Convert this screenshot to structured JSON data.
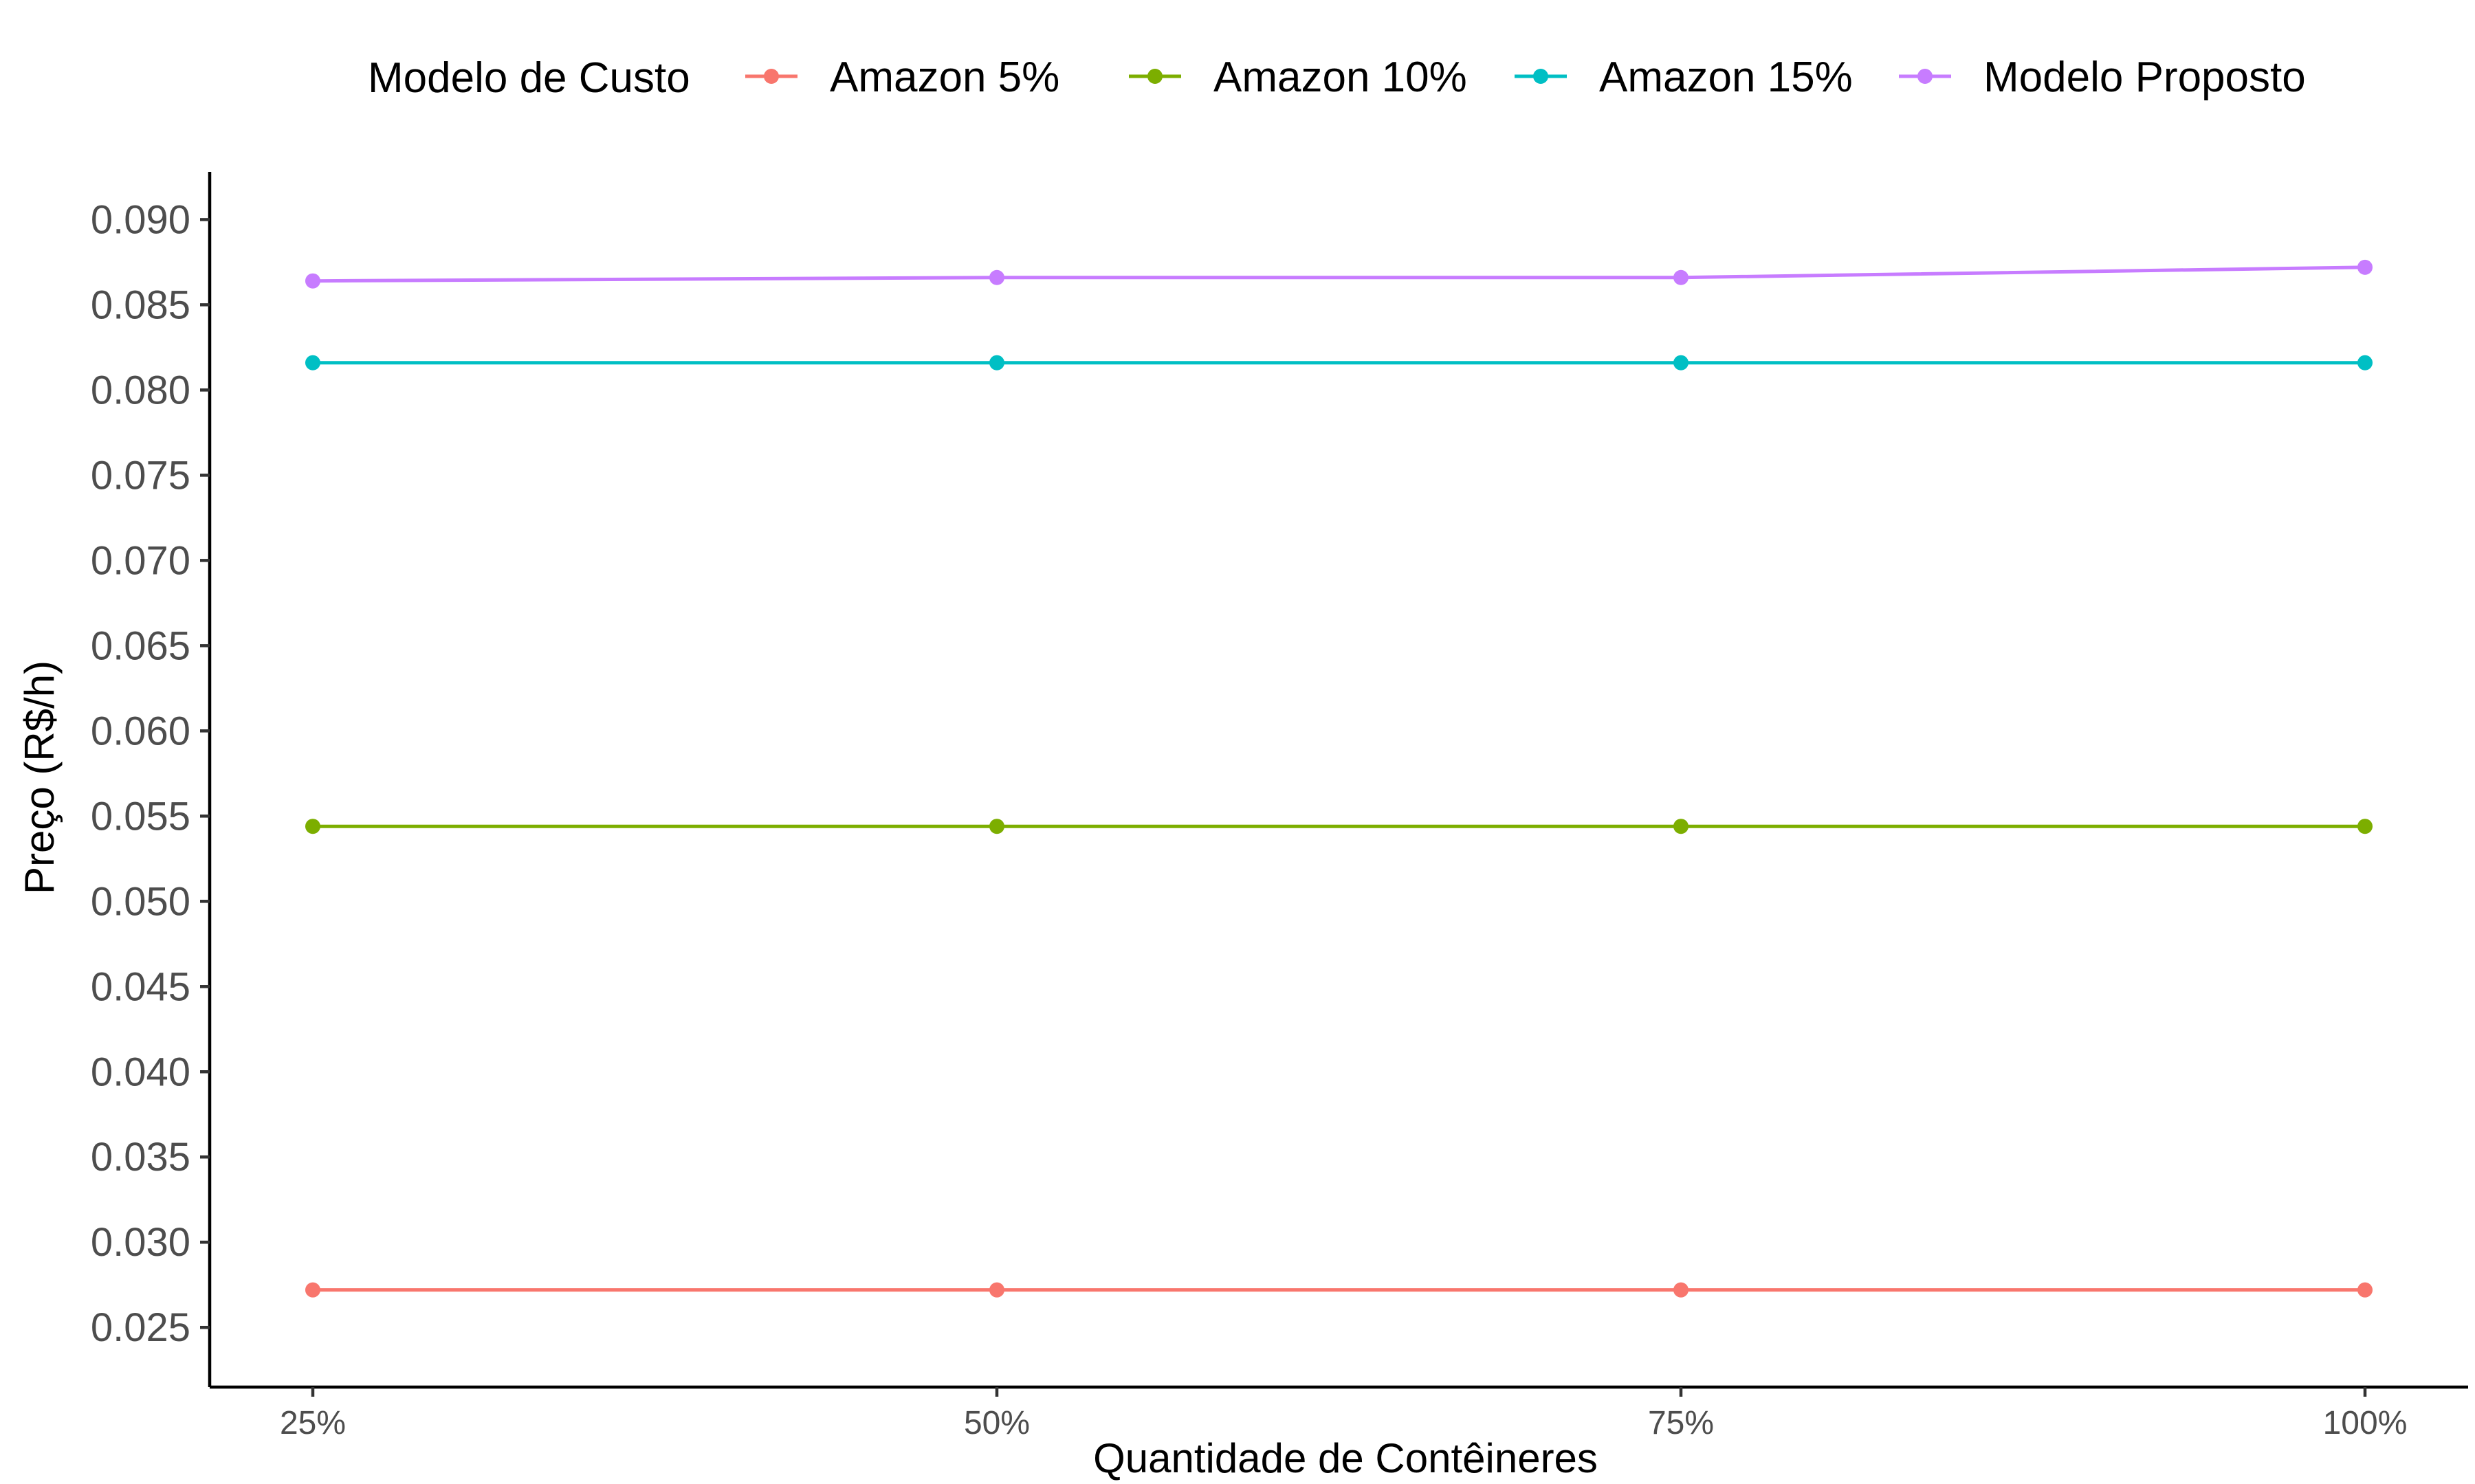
{
  "chart_data": {
    "type": "line",
    "xlabel": "Quantidade de Contêineres",
    "ylabel": "Preço (R$/h)",
    "categories": [
      "25%",
      "50%",
      "75%",
      "100%"
    ],
    "yticks": [
      "0.025",
      "0.030",
      "0.035",
      "0.040",
      "0.045",
      "0.050",
      "0.055",
      "0.060",
      "0.065",
      "0.070",
      "0.075",
      "0.080",
      "0.085",
      "0.090"
    ],
    "ylim": [
      0.0215,
      0.0928
    ],
    "grid": false,
    "legend": {
      "title": "Modelo de Custo",
      "position": "top"
    },
    "series": [
      {
        "name": "Amazon 5%",
        "color": "#F8766D",
        "values": [
          0.0272,
          0.0272,
          0.0272,
          0.0272
        ]
      },
      {
        "name": "Amazon 10%",
        "color": "#7CAE00",
        "values": [
          0.0544,
          0.0544,
          0.0544,
          0.0544
        ]
      },
      {
        "name": "Amazon 15%",
        "color": "#00BFC4",
        "values": [
          0.0816,
          0.0816,
          0.0816,
          0.0816
        ]
      },
      {
        "name": "Modelo Proposto",
        "color": "#C77CFF",
        "values": [
          0.0864,
          0.0866,
          0.0866,
          0.0872
        ]
      }
    ]
  }
}
